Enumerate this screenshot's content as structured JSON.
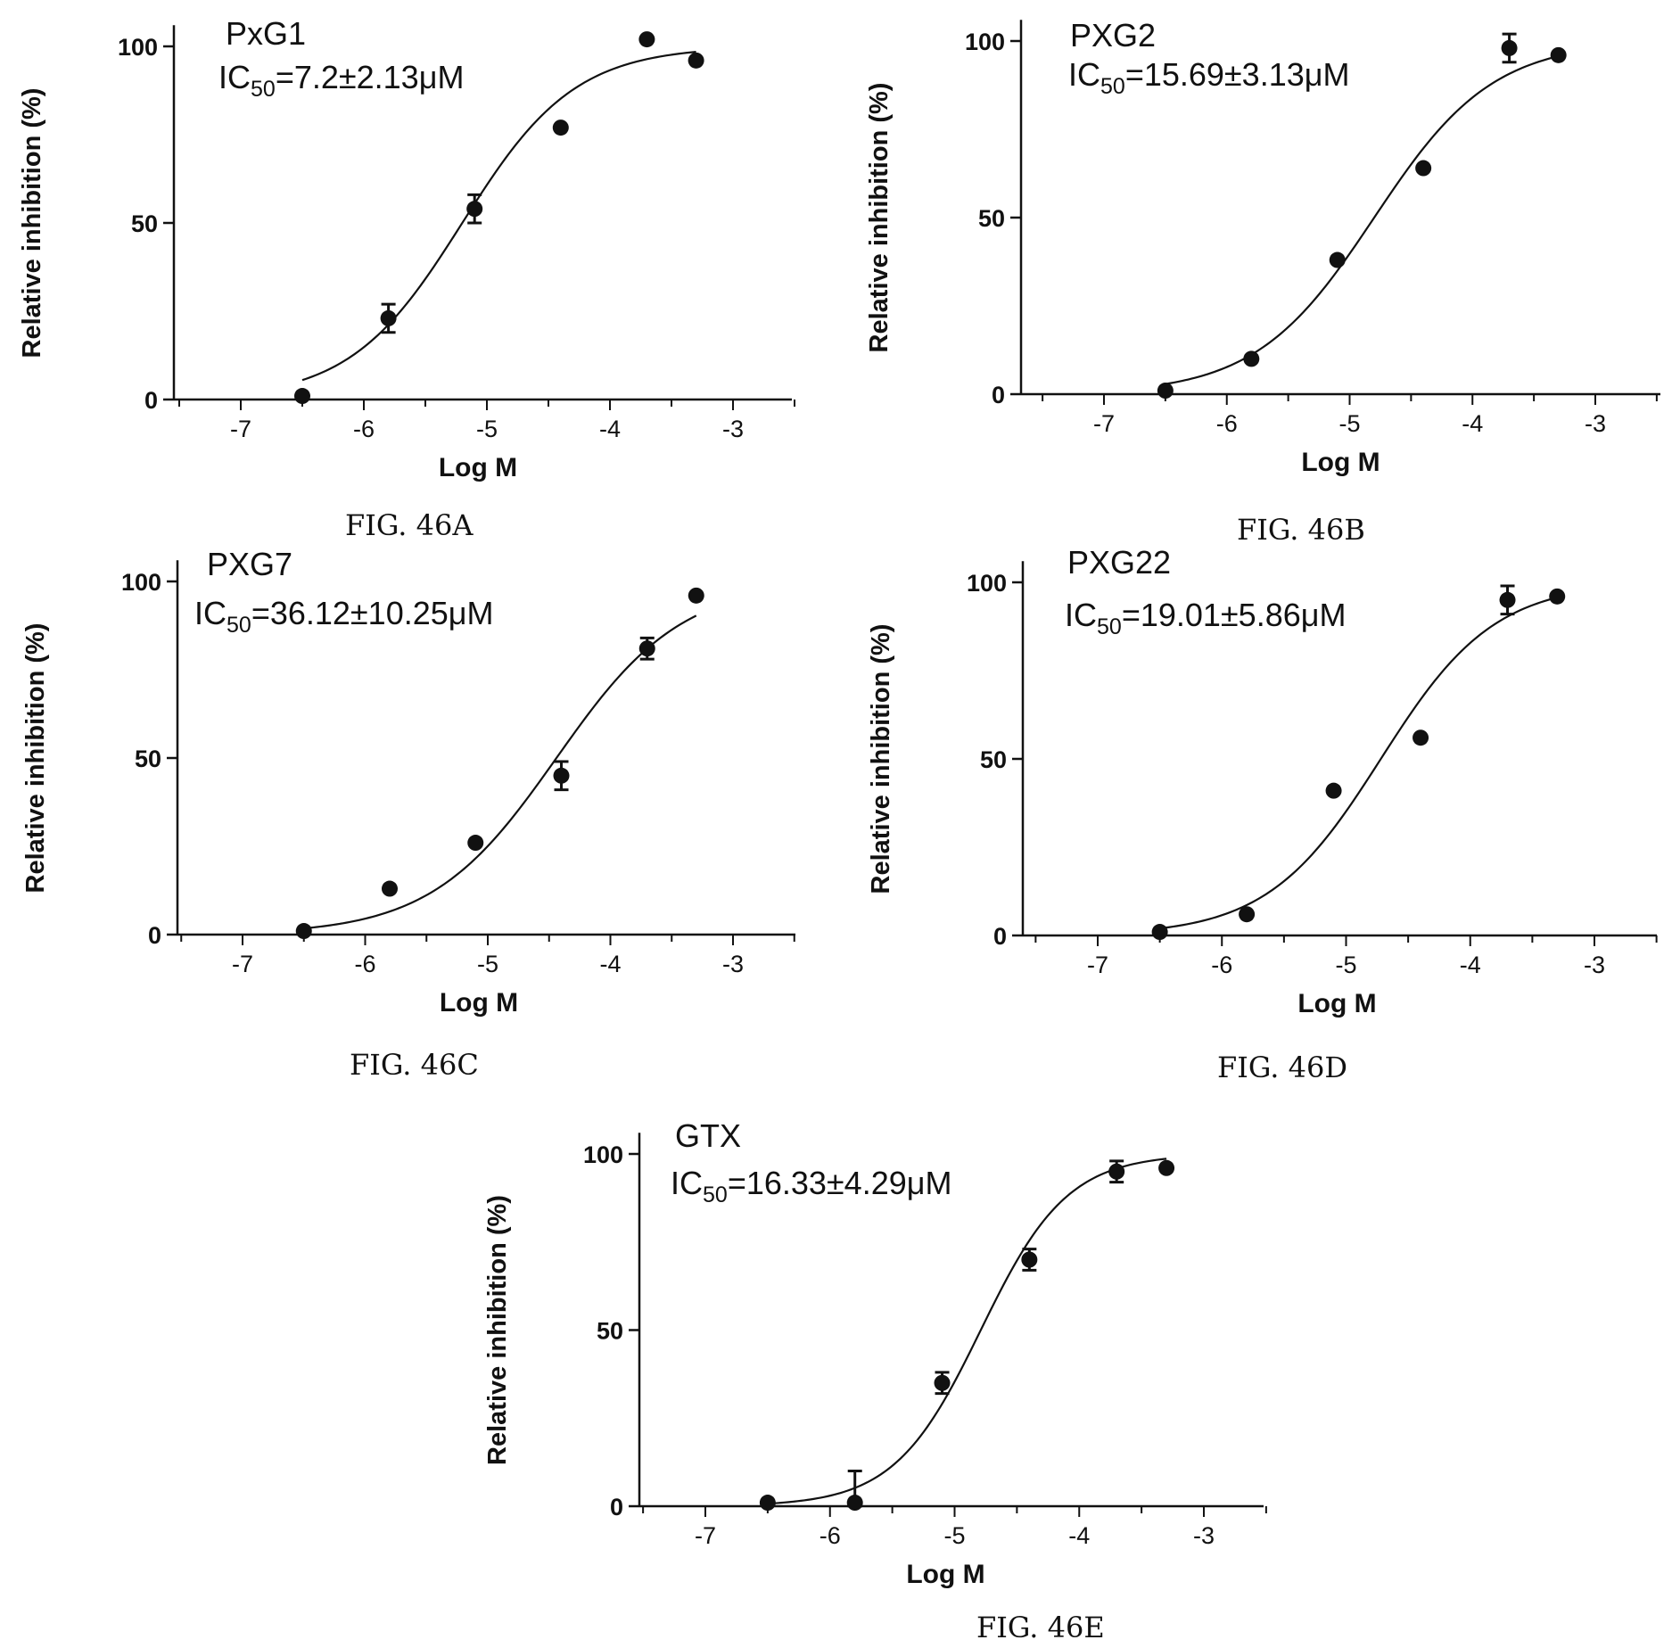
{
  "chart_data": [
    {
      "type": "scatter",
      "panel": "A",
      "caption": "FIG. 46A",
      "compound": "PxG1",
      "ic50_label": {
        "prefix": "IC",
        "subscript": "50",
        "suffix": "=7.2±2.13μM"
      },
      "xlabel": "Log M",
      "ylabel": "Relative inhibition (%)",
      "xlim": [
        -7.5,
        -2.5
      ],
      "ylim": [
        0,
        105
      ],
      "xticks": [
        -7,
        -6,
        -5,
        -4,
        -3
      ],
      "yticks": [
        0,
        50,
        100
      ],
      "series": [
        {
          "points": [
            {
              "x": -6.5,
              "y": 1,
              "err": 0
            },
            {
              "x": -5.8,
              "y": 23,
              "err": 4
            },
            {
              "x": -5.1,
              "y": 54,
              "err": 4
            },
            {
              "x": -4.4,
              "y": 77,
              "err": 0
            },
            {
              "x": -3.7,
              "y": 102,
              "err": 0
            },
            {
              "x": -3.3,
              "y": 96,
              "err": 0
            }
          ],
          "fit_curve": {
            "bottom": 0,
            "top": 100,
            "log_ic50": -5.2,
            "hill": 0.95,
            "x_range": [
              -6.5,
              -3.3
            ]
          }
        }
      ]
    },
    {
      "type": "scatter",
      "panel": "B",
      "caption": "FIG. 46B",
      "compound": "PXG2",
      "ic50_label": {
        "prefix": "IC",
        "subscript": "50",
        "suffix": "=15.69±3.13μM"
      },
      "xlabel": "Log M",
      "ylabel": "Relative inhibition (%)",
      "xlim": [
        -7.5,
        -2.5
      ],
      "ylim": [
        0,
        105
      ],
      "xticks": [
        -7,
        -6,
        -5,
        -4,
        -3
      ],
      "yticks": [
        0,
        50,
        100
      ],
      "series": [
        {
          "points": [
            {
              "x": -6.5,
              "y": 1,
              "err": 0
            },
            {
              "x": -5.8,
              "y": 10,
              "err": 0
            },
            {
              "x": -5.1,
              "y": 38,
              "err": 0
            },
            {
              "x": -4.4,
              "y": 64,
              "err": 0
            },
            {
              "x": -3.7,
              "y": 98,
              "err": 4
            },
            {
              "x": -3.3,
              "y": 96,
              "err": 0
            }
          ],
          "fit_curve": {
            "bottom": 0,
            "top": 100,
            "log_ic50": -4.8,
            "hill": 0.9,
            "x_range": [
              -6.5,
              -3.3
            ]
          }
        }
      ]
    },
    {
      "type": "scatter",
      "panel": "C",
      "caption": "FIG. 46C",
      "compound": "PXG7",
      "ic50_label": {
        "prefix": "IC",
        "subscript": "50",
        "suffix": "=36.12±10.25μM"
      },
      "xlabel": "Log M",
      "ylabel": "Relative inhibition (%)",
      "xlim": [
        -7.5,
        -2.5
      ],
      "ylim": [
        0,
        105
      ],
      "xticks": [
        -7,
        -6,
        -5,
        -4,
        -3
      ],
      "yticks": [
        0,
        50,
        100
      ],
      "series": [
        {
          "points": [
            {
              "x": -6.5,
              "y": 1,
              "err": 0
            },
            {
              "x": -5.8,
              "y": 13,
              "err": 0
            },
            {
              "x": -5.1,
              "y": 26,
              "err": 0
            },
            {
              "x": -4.4,
              "y": 45,
              "err": 4
            },
            {
              "x": -3.7,
              "y": 81,
              "err": 3
            },
            {
              "x": -3.3,
              "y": 96,
              "err": 0
            }
          ],
          "fit_curve": {
            "bottom": 0,
            "top": 100,
            "log_ic50": -4.44,
            "hill": 0.85,
            "x_range": [
              -6.5,
              -3.3
            ]
          }
        }
      ]
    },
    {
      "type": "scatter",
      "panel": "D",
      "caption": "FIG. 46D",
      "compound": "PXG22",
      "ic50_label": {
        "prefix": "IC",
        "subscript": "50",
        "suffix": "=19.01±5.86μM"
      },
      "xlabel": "Log M",
      "ylabel": "Relative inhibition (%)",
      "xlim": [
        -7.5,
        -2.5
      ],
      "ylim": [
        0,
        105
      ],
      "xticks": [
        -7,
        -6,
        -5,
        -4,
        -3
      ],
      "yticks": [
        0,
        50,
        100
      ],
      "series": [
        {
          "points": [
            {
              "x": -6.5,
              "y": 1,
              "err": 0
            },
            {
              "x": -5.8,
              "y": 6,
              "err": 0
            },
            {
              "x": -5.1,
              "y": 41,
              "err": 0
            },
            {
              "x": -4.4,
              "y": 56,
              "err": 0
            },
            {
              "x": -3.7,
              "y": 95,
              "err": 4
            },
            {
              "x": -3.3,
              "y": 96,
              "err": 0
            }
          ],
          "fit_curve": {
            "bottom": 0,
            "top": 100,
            "log_ic50": -4.72,
            "hill": 0.95,
            "x_range": [
              -6.5,
              -3.3
            ]
          }
        }
      ]
    },
    {
      "type": "scatter",
      "panel": "E",
      "caption": "FIG. 46E",
      "compound": "GTX",
      "ic50_label": {
        "prefix": "IC",
        "subscript": "50",
        "suffix": "=16.33±4.29μM"
      },
      "xlabel": "Log M",
      "ylabel": "Relative inhibition (%)",
      "xlim": [
        -7.5,
        -2.5
      ],
      "ylim": [
        0,
        105
      ],
      "xticks": [
        -7,
        -6,
        -5,
        -4,
        -3
      ],
      "yticks": [
        0,
        50,
        100
      ],
      "series": [
        {
          "points": [
            {
              "x": -6.5,
              "y": 1,
              "err": 0
            },
            {
              "x": -5.8,
              "y": 1,
              "err": 9
            },
            {
              "x": -5.1,
              "y": 35,
              "err": 3
            },
            {
              "x": -4.4,
              "y": 70,
              "err": 3
            },
            {
              "x": -3.7,
              "y": 95,
              "err": 3
            },
            {
              "x": -3.3,
              "y": 96,
              "err": 0
            }
          ],
          "fit_curve": {
            "bottom": 0,
            "top": 100,
            "log_ic50": -4.79,
            "hill": 1.25,
            "x_range": [
              -6.5,
              -3.3
            ]
          }
        }
      ]
    }
  ]
}
